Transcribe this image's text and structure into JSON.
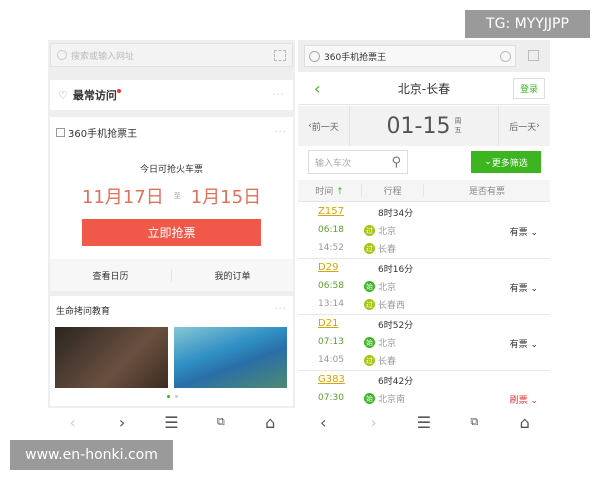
{
  "watermarks": {
    "top": "TG: MYYJJPP",
    "bottom": "www.en-honki.com"
  },
  "left": {
    "search_placeholder": "搜索或输入网址",
    "frequent": {
      "title": "最常访问",
      "more": "···"
    },
    "ticket_card": {
      "title": "360手机抢票王",
      "more": "···",
      "subtitle": "今日可抢火车票",
      "date_from": "11月17日",
      "to": "至",
      "date_to": "1月15日",
      "button": "立即抢票",
      "link_calendar": "查看日历",
      "link_orders": "我的订单"
    },
    "news_card": {
      "title": "生命拷问教育",
      "more": "···"
    }
  },
  "right": {
    "url_title": "360手机抢票王",
    "route": "北京-长春",
    "login": "登录",
    "prev_day": "前一天",
    "date": "01-15",
    "weekday_1": "周",
    "weekday_2": "五",
    "next_day": "后一天",
    "train_placeholder": "输入车次",
    "filter": "更多筛选",
    "columns": [
      "时间",
      "行程",
      "是否有票"
    ],
    "trains": [
      {
        "no": "Z157",
        "duration": "8时34分",
        "dep": "06:18",
        "arr": "14:52",
        "from": "北京",
        "to": "长春",
        "from_badge": "过",
        "to_badge": "过",
        "status": "有票"
      },
      {
        "no": "D29",
        "duration": "6时16分",
        "dep": "06:58",
        "arr": "13:14",
        "from": "北京",
        "to": "长春西",
        "from_badge": "始",
        "to_badge": "过",
        "status": "有票"
      },
      {
        "no": "D21",
        "duration": "6时52分",
        "dep": "07:13",
        "arr": "14:05",
        "from": "北京",
        "to": "长春",
        "from_badge": "始",
        "to_badge": "过",
        "status": "有票"
      },
      {
        "no": "G383",
        "duration": "6时42分",
        "dep": "07:30",
        "from": "北京南",
        "from_badge": "始",
        "status": "刷票"
      }
    ]
  },
  "colors": {
    "accent_red": "#f0594a",
    "green": "#3cb521",
    "date_red": "#e0705a"
  }
}
